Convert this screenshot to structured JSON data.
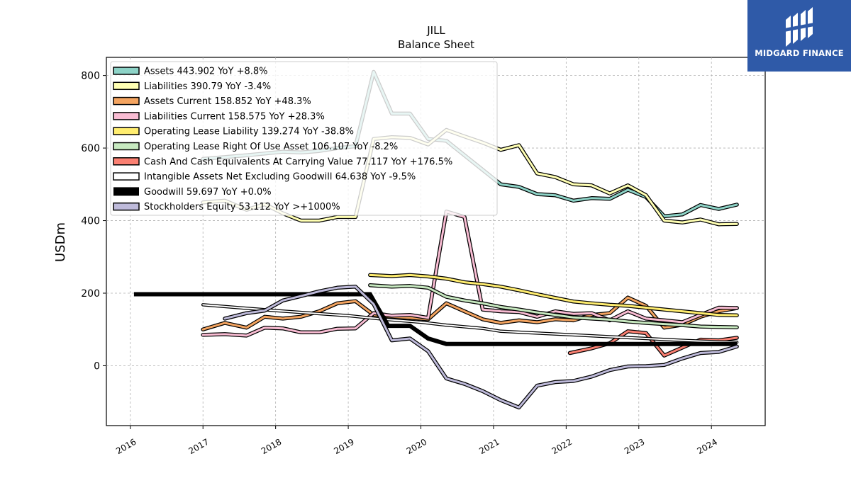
{
  "brand": {
    "name": "MIDGARD FINANCE",
    "color": "#2f5aa8"
  },
  "chart_data": {
    "type": "line",
    "title": "JILL",
    "subtitle": "Balance  Sheet",
    "xlabel": "",
    "ylabel": "USDm",
    "xlim": [
      2015.67,
      2024.74
    ],
    "ylim": [
      -165,
      850
    ],
    "xticks": [
      2016,
      2017,
      2018,
      2019,
      2020,
      2021,
      2022,
      2023,
      2024
    ],
    "yticks": [
      0,
      200,
      400,
      600,
      800
    ],
    "grid": true,
    "legend_position": "top-left",
    "series": [
      {
        "name": "Assets",
        "legend": "Assets  443.902 YoY +8.8%",
        "color": "#8dd3c7",
        "width": 3,
        "points": [
          [
            2017.0,
            570
          ],
          [
            2017.3,
            575
          ],
          [
            2017.6,
            580
          ],
          [
            2017.85,
            585
          ],
          [
            2018.1,
            590
          ],
          [
            2018.35,
            588
          ],
          [
            2018.6,
            592
          ],
          [
            2018.85,
            600
          ],
          [
            2019.1,
            605
          ],
          [
            2019.35,
            810
          ],
          [
            2019.6,
            695
          ],
          [
            2019.85,
            695
          ],
          [
            2020.1,
            625
          ],
          [
            2020.35,
            620
          ],
          [
            2020.6,
            580
          ],
          [
            2020.85,
            540
          ],
          [
            2021.1,
            500
          ],
          [
            2021.35,
            493
          ],
          [
            2021.6,
            473
          ],
          [
            2021.85,
            470
          ],
          [
            2022.1,
            455
          ],
          [
            2022.35,
            462
          ],
          [
            2022.6,
            460
          ],
          [
            2022.85,
            485
          ],
          [
            2023.1,
            465
          ],
          [
            2023.35,
            412
          ],
          [
            2023.6,
            417
          ],
          [
            2023.85,
            443
          ],
          [
            2024.1,
            432
          ],
          [
            2024.35,
            444
          ]
        ]
      },
      {
        "name": "Liabilities",
        "legend": "Liabilities  390.79 YoY -3.4%",
        "color": "#ffffb3",
        "width": 3,
        "points": [
          [
            2017.0,
            450
          ],
          [
            2017.3,
            455
          ],
          [
            2017.6,
            430
          ],
          [
            2017.85,
            445
          ],
          [
            2018.1,
            420
          ],
          [
            2018.35,
            400
          ],
          [
            2018.6,
            400
          ],
          [
            2018.85,
            410
          ],
          [
            2019.1,
            410
          ],
          [
            2019.35,
            625
          ],
          [
            2019.6,
            630
          ],
          [
            2019.85,
            628
          ],
          [
            2020.1,
            610
          ],
          [
            2020.35,
            650
          ],
          [
            2020.6,
            632
          ],
          [
            2020.85,
            615
          ],
          [
            2021.1,
            595
          ],
          [
            2021.35,
            608
          ],
          [
            2021.6,
            530
          ],
          [
            2021.85,
            520
          ],
          [
            2022.1,
            500
          ],
          [
            2022.35,
            497
          ],
          [
            2022.6,
            475
          ],
          [
            2022.85,
            497
          ],
          [
            2023.1,
            470
          ],
          [
            2023.35,
            400
          ],
          [
            2023.6,
            395
          ],
          [
            2023.85,
            403
          ],
          [
            2024.1,
            390
          ],
          [
            2024.35,
            391
          ]
        ]
      },
      {
        "name": "Assets Current",
        "legend": "Assets Current  158.852 YoY +48.3%",
        "color": "#f4a460",
        "width": 3,
        "points": [
          [
            2017.0,
            100
          ],
          [
            2017.3,
            118
          ],
          [
            2017.6,
            105
          ],
          [
            2017.85,
            135
          ],
          [
            2018.1,
            130
          ],
          [
            2018.35,
            135
          ],
          [
            2018.6,
            150
          ],
          [
            2018.85,
            172
          ],
          [
            2019.1,
            178
          ],
          [
            2019.35,
            140
          ],
          [
            2019.6,
            135
          ],
          [
            2019.85,
            132
          ],
          [
            2020.1,
            128
          ],
          [
            2020.35,
            172
          ],
          [
            2020.6,
            150
          ],
          [
            2020.85,
            128
          ],
          [
            2021.1,
            118
          ],
          [
            2021.35,
            125
          ],
          [
            2021.6,
            120
          ],
          [
            2021.85,
            128
          ],
          [
            2022.1,
            125
          ],
          [
            2022.35,
            140
          ],
          [
            2022.6,
            145
          ],
          [
            2022.85,
            188
          ],
          [
            2023.1,
            165
          ],
          [
            2023.35,
            105
          ],
          [
            2023.6,
            113
          ],
          [
            2023.85,
            135
          ],
          [
            2024.1,
            150
          ],
          [
            2024.35,
            159
          ]
        ]
      },
      {
        "name": "Liabilities Current",
        "legend": "Liabilities Current  158.575 YoY +28.3%",
        "color": "#f9bcd3",
        "width": 3,
        "points": [
          [
            2017.0,
            85
          ],
          [
            2017.3,
            87
          ],
          [
            2017.6,
            83
          ],
          [
            2017.85,
            105
          ],
          [
            2018.1,
            103
          ],
          [
            2018.35,
            92
          ],
          [
            2018.6,
            92
          ],
          [
            2018.85,
            102
          ],
          [
            2019.1,
            103
          ],
          [
            2019.35,
            145
          ],
          [
            2019.6,
            138
          ],
          [
            2019.85,
            140
          ],
          [
            2020.1,
            132
          ],
          [
            2020.35,
            425
          ],
          [
            2020.6,
            410
          ],
          [
            2020.85,
            155
          ],
          [
            2021.1,
            150
          ],
          [
            2021.35,
            148
          ],
          [
            2021.6,
            135
          ],
          [
            2021.85,
            150
          ],
          [
            2022.1,
            143
          ],
          [
            2022.35,
            145
          ],
          [
            2022.6,
            125
          ],
          [
            2022.85,
            150
          ],
          [
            2023.1,
            130
          ],
          [
            2023.35,
            125
          ],
          [
            2023.6,
            120
          ],
          [
            2023.85,
            140
          ],
          [
            2024.1,
            160
          ],
          [
            2024.35,
            159
          ]
        ]
      },
      {
        "name": "Operating Lease Liability",
        "legend": "Operating Lease Liability  139.274 YoY -38.8%",
        "color": "#ffed6f",
        "width": 3,
        "points": [
          [
            2019.3,
            250
          ],
          [
            2019.6,
            247
          ],
          [
            2019.85,
            250
          ],
          [
            2020.1,
            246
          ],
          [
            2020.35,
            240
          ],
          [
            2020.6,
            230
          ],
          [
            2020.85,
            225
          ],
          [
            2021.1,
            218
          ],
          [
            2021.35,
            208
          ],
          [
            2021.6,
            197
          ],
          [
            2021.85,
            187
          ],
          [
            2022.1,
            177
          ],
          [
            2022.35,
            172
          ],
          [
            2022.6,
            168
          ],
          [
            2022.85,
            165
          ],
          [
            2023.1,
            160
          ],
          [
            2023.35,
            155
          ],
          [
            2023.6,
            150
          ],
          [
            2023.85,
            145
          ],
          [
            2024.1,
            140
          ],
          [
            2024.35,
            139
          ]
        ]
      },
      {
        "name": "Operating Lease Right Of Use Asset",
        "legend": "Operating Lease Right Of Use Asset  106.107 YoY -8.2%",
        "color": "#c7e9c0",
        "width": 3,
        "points": [
          [
            2019.3,
            222
          ],
          [
            2019.6,
            218
          ],
          [
            2019.85,
            220
          ],
          [
            2020.1,
            215
          ],
          [
            2020.35,
            190
          ],
          [
            2020.6,
            180
          ],
          [
            2020.85,
            172
          ],
          [
            2021.1,
            162
          ],
          [
            2021.35,
            155
          ],
          [
            2021.6,
            147
          ],
          [
            2021.85,
            140
          ],
          [
            2022.1,
            133
          ],
          [
            2022.35,
            130
          ],
          [
            2022.6,
            127
          ],
          [
            2022.85,
            122
          ],
          [
            2023.1,
            118
          ],
          [
            2023.35,
            115
          ],
          [
            2023.6,
            112
          ],
          [
            2023.85,
            108
          ],
          [
            2024.1,
            107
          ],
          [
            2024.35,
            106
          ]
        ]
      },
      {
        "name": "Cash And Cash Equivalents At Carrying Value",
        "legend": "Cash And Cash Equivalents At Carrying Value  77.117 YoY +176.5%",
        "color": "#fb8072",
        "width": 3,
        "points": [
          [
            2022.05,
            35
          ],
          [
            2022.35,
            48
          ],
          [
            2022.6,
            62
          ],
          [
            2022.85,
            95
          ],
          [
            2023.1,
            90
          ],
          [
            2023.35,
            28
          ],
          [
            2023.6,
            50
          ],
          [
            2023.85,
            72
          ],
          [
            2024.1,
            70
          ],
          [
            2024.35,
            77
          ]
        ]
      },
      {
        "name": "Intangible Assets Net Excluding Goodwill",
        "legend": "Intangible Assets Net Excluding Goodwill  64.638 YoY -9.5%",
        "color": "#ffffff",
        "width": 2,
        "points": [
          [
            2017.0,
            168
          ],
          [
            2017.5,
            160
          ],
          [
            2018.0,
            152
          ],
          [
            2018.5,
            145
          ],
          [
            2019.0,
            138
          ],
          [
            2019.5,
            128
          ],
          [
            2020.0,
            120
          ],
          [
            2020.35,
            112
          ],
          [
            2020.85,
            103
          ],
          [
            2021.1,
            95
          ],
          [
            2021.6,
            90
          ],
          [
            2022.1,
            85
          ],
          [
            2022.6,
            80
          ],
          [
            2023.1,
            75
          ],
          [
            2023.6,
            70
          ],
          [
            2024.1,
            66
          ],
          [
            2024.35,
            65
          ]
        ]
      },
      {
        "name": "Goodwill",
        "legend": "Goodwill  59.697 YoY +0.0%",
        "color": "#000000",
        "width": 6,
        "plain": true,
        "points": [
          [
            2016.05,
            197
          ],
          [
            2019.3,
            197
          ],
          [
            2019.55,
            110
          ],
          [
            2019.85,
            110
          ],
          [
            2020.1,
            75
          ],
          [
            2020.35,
            60
          ],
          [
            2021.1,
            60
          ],
          [
            2024.35,
            60
          ]
        ]
      },
      {
        "name": "Stockholders Equity",
        "legend": "Stockholders Equity  53.112 YoY >+1000%",
        "color": "#bebada",
        "width": 3,
        "points": [
          [
            2017.3,
            130
          ],
          [
            2017.6,
            145
          ],
          [
            2017.85,
            152
          ],
          [
            2018.1,
            180
          ],
          [
            2018.35,
            192
          ],
          [
            2018.6,
            205
          ],
          [
            2018.85,
            215
          ],
          [
            2019.1,
            218
          ],
          [
            2019.35,
            170
          ],
          [
            2019.6,
            70
          ],
          [
            2019.85,
            75
          ],
          [
            2020.1,
            40
          ],
          [
            2020.35,
            -35
          ],
          [
            2020.6,
            -50
          ],
          [
            2020.85,
            -70
          ],
          [
            2021.1,
            -95
          ],
          [
            2021.35,
            -115
          ],
          [
            2021.6,
            -55
          ],
          [
            2021.85,
            -45
          ],
          [
            2022.1,
            -42
          ],
          [
            2022.35,
            -30
          ],
          [
            2022.6,
            -12
          ],
          [
            2022.85,
            -2
          ],
          [
            2023.1,
            -1
          ],
          [
            2023.35,
            2
          ],
          [
            2023.6,
            20
          ],
          [
            2023.85,
            35
          ],
          [
            2024.1,
            38
          ],
          [
            2024.35,
            53
          ]
        ]
      }
    ]
  }
}
